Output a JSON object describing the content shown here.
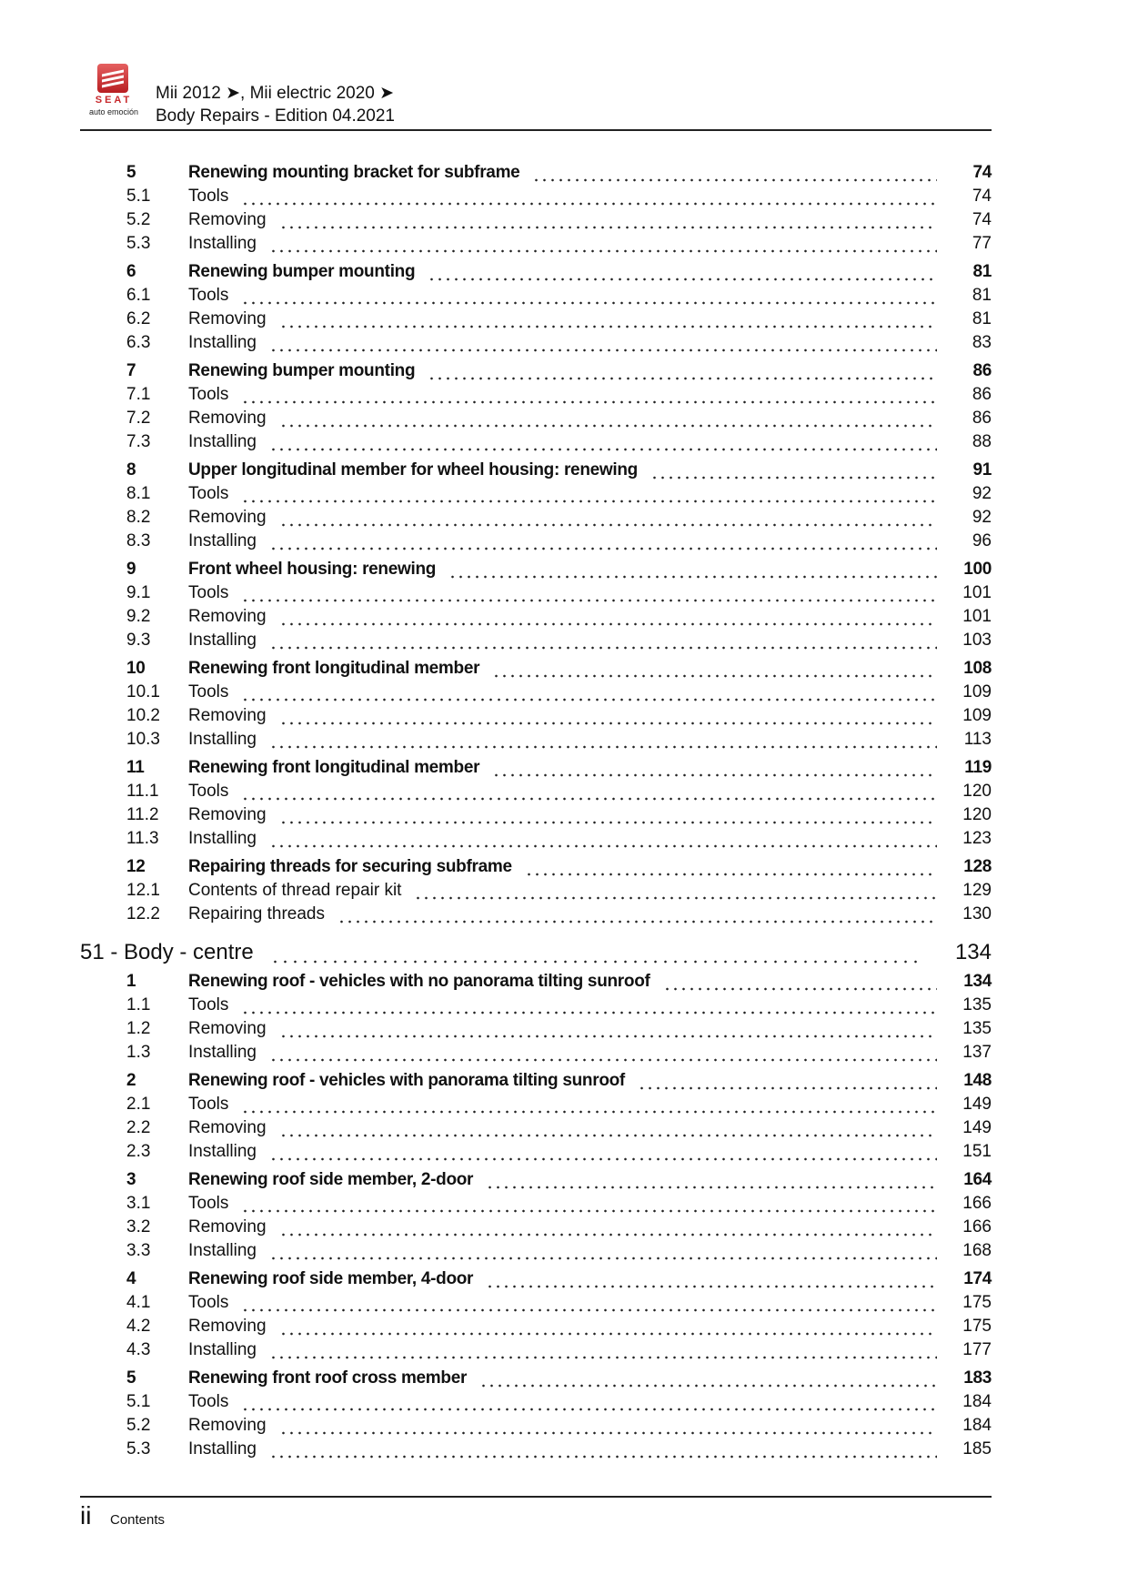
{
  "header": {
    "logo_brand": "SEAT",
    "logo_tagline": "auto emoción",
    "line1": "Mii 2012 ➤, Mii electric 2020 ➤",
    "line2": "Body Repairs - Edition 04.2021"
  },
  "groups_a": [
    {
      "num": "5",
      "title": "Renewing mounting bracket for subframe",
      "page": "74",
      "items": [
        {
          "num": "5.1",
          "title": "Tools",
          "page": "74"
        },
        {
          "num": "5.2",
          "title": "Removing",
          "page": "74"
        },
        {
          "num": "5.3",
          "title": "Installing",
          "page": "77"
        }
      ]
    },
    {
      "num": "6",
      "title": "Renewing bumper mounting",
      "page": "81",
      "items": [
        {
          "num": "6.1",
          "title": "Tools",
          "page": "81"
        },
        {
          "num": "6.2",
          "title": "Removing",
          "page": "81"
        },
        {
          "num": "6.3",
          "title": "Installing",
          "page": "83"
        }
      ]
    },
    {
      "num": "7",
      "title": "Renewing bumper mounting",
      "page": "86",
      "items": [
        {
          "num": "7.1",
          "title": "Tools",
          "page": "86"
        },
        {
          "num": "7.2",
          "title": "Removing",
          "page": "86"
        },
        {
          "num": "7.3",
          "title": "Installing",
          "page": "88"
        }
      ]
    },
    {
      "num": "8",
      "title": "Upper longitudinal member for wheel housing: renewing",
      "page": "91",
      "items": [
        {
          "num": "8.1",
          "title": "Tools",
          "page": "92"
        },
        {
          "num": "8.2",
          "title": "Removing",
          "page": "92"
        },
        {
          "num": "8.3",
          "title": "Installing",
          "page": "96"
        }
      ]
    },
    {
      "num": "9",
      "title": "Front wheel housing: renewing",
      "page": "100",
      "items": [
        {
          "num": "9.1",
          "title": "Tools",
          "page": "101"
        },
        {
          "num": "9.2",
          "title": "Removing",
          "page": "101"
        },
        {
          "num": "9.3",
          "title": "Installing",
          "page": "103"
        }
      ]
    },
    {
      "num": "10",
      "title": "Renewing front longitudinal member",
      "page": "108",
      "items": [
        {
          "num": "10.1",
          "title": "Tools",
          "page": "109"
        },
        {
          "num": "10.2",
          "title": "Removing",
          "page": "109"
        },
        {
          "num": "10.3",
          "title": "Installing",
          "page": "113"
        }
      ]
    },
    {
      "num": "11",
      "title": "Renewing front longitudinal member",
      "page": "119",
      "items": [
        {
          "num": "11.1",
          "title": "Tools",
          "page": "120"
        },
        {
          "num": "11.2",
          "title": "Removing",
          "page": "120"
        },
        {
          "num": "11.3",
          "title": "Installing",
          "page": "123"
        }
      ]
    },
    {
      "num": "12",
      "title": "Repairing threads for securing subframe",
      "page": "128",
      "items": [
        {
          "num": "12.1",
          "title": "Contents of thread repair kit",
          "page": "129"
        },
        {
          "num": "12.2",
          "title": "Repairing threads",
          "page": "130"
        }
      ]
    }
  ],
  "chapter": {
    "title": "51 - Body - centre",
    "page": "134"
  },
  "groups_b": [
    {
      "num": "1",
      "title": "Renewing roof - vehicles with no panorama tilting sunroof",
      "page": "134",
      "items": [
        {
          "num": "1.1",
          "title": "Tools",
          "page": "135"
        },
        {
          "num": "1.2",
          "title": "Removing",
          "page": "135"
        },
        {
          "num": "1.3",
          "title": "Installing",
          "page": "137"
        }
      ]
    },
    {
      "num": "2",
      "title": "Renewing roof - vehicles with panorama tilting sunroof",
      "page": "148",
      "items": [
        {
          "num": "2.1",
          "title": "Tools",
          "page": "149"
        },
        {
          "num": "2.2",
          "title": "Removing",
          "page": "149"
        },
        {
          "num": "2.3",
          "title": "Installing",
          "page": "151"
        }
      ]
    },
    {
      "num": "3",
      "title": "Renewing roof side member, 2-door",
      "page": "164",
      "items": [
        {
          "num": "3.1",
          "title": "Tools",
          "page": "166"
        },
        {
          "num": "3.2",
          "title": "Removing",
          "page": "166"
        },
        {
          "num": "3.3",
          "title": "Installing",
          "page": "168"
        }
      ]
    },
    {
      "num": "4",
      "title": "Renewing roof side member, 4-door",
      "page": "174",
      "items": [
        {
          "num": "4.1",
          "title": "Tools",
          "page": "175"
        },
        {
          "num": "4.2",
          "title": "Removing",
          "page": "175"
        },
        {
          "num": "4.3",
          "title": "Installing",
          "page": "177"
        }
      ]
    },
    {
      "num": "5",
      "title": "Renewing front roof cross member",
      "page": "183",
      "items": [
        {
          "num": "5.1",
          "title": "Tools",
          "page": "184"
        },
        {
          "num": "5.2",
          "title": "Removing",
          "page": "184"
        },
        {
          "num": "5.3",
          "title": "Installing",
          "page": "185"
        }
      ]
    }
  ],
  "footer": {
    "page_number": "ii",
    "label": "Contents"
  }
}
